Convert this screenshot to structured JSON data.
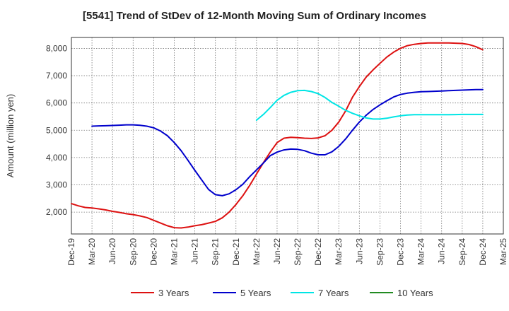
{
  "chart_data": {
    "type": "line",
    "title": "[5541]  Trend of StDev of 12-Month Moving Sum of Ordinary Incomes",
    "ylabel": "Amount (million yen)",
    "xlabel": "",
    "x_ticks": [
      "Dec-19",
      "Mar-20",
      "Jun-20",
      "Sep-20",
      "Dec-20",
      "Mar-21",
      "Jun-21",
      "Sep-21",
      "Dec-21",
      "Mar-22",
      "Jun-22",
      "Sep-22",
      "Dec-22",
      "Mar-23",
      "Jun-23",
      "Sep-23",
      "Dec-23",
      "Mar-24",
      "Jun-24",
      "Sep-24",
      "Dec-24",
      "Mar-25"
    ],
    "y_ticks": [
      2000,
      3000,
      4000,
      5000,
      6000,
      7000,
      8000
    ],
    "y_tick_labels": [
      "2,000",
      "3,000",
      "4,000",
      "5,000",
      "6,000",
      "7,000",
      "8,000"
    ],
    "ylim": [
      1200,
      8400
    ],
    "grid": true,
    "legend_position": "bottom",
    "series": [
      {
        "name": "3 Years",
        "color": "#dd1111",
        "points": [
          [
            "Dec-19",
            2310
          ],
          [
            "Jan-20",
            2230
          ],
          [
            "Feb-20",
            2170
          ],
          [
            "Mar-20",
            2150
          ],
          [
            "Apr-20",
            2120
          ],
          [
            "May-20",
            2080
          ],
          [
            "Jun-20",
            2030
          ],
          [
            "Jul-20",
            1990
          ],
          [
            "Aug-20",
            1940
          ],
          [
            "Sep-20",
            1910
          ],
          [
            "Oct-20",
            1860
          ],
          [
            "Nov-20",
            1800
          ],
          [
            "Dec-20",
            1700
          ],
          [
            "Jan-21",
            1600
          ],
          [
            "Feb-21",
            1500
          ],
          [
            "Mar-21",
            1430
          ],
          [
            "Apr-21",
            1420
          ],
          [
            "May-21",
            1450
          ],
          [
            "Jun-21",
            1500
          ],
          [
            "Jul-21",
            1540
          ],
          [
            "Aug-21",
            1600
          ],
          [
            "Sep-21",
            1660
          ],
          [
            "Oct-21",
            1790
          ],
          [
            "Nov-21",
            2000
          ],
          [
            "Dec-21",
            2280
          ],
          [
            "Jan-22",
            2600
          ],
          [
            "Feb-22",
            2980
          ],
          [
            "Mar-22",
            3400
          ],
          [
            "Apr-22",
            3810
          ],
          [
            "May-22",
            4200
          ],
          [
            "Jun-22",
            4550
          ],
          [
            "Jul-22",
            4710
          ],
          [
            "Aug-22",
            4740
          ],
          [
            "Sep-22",
            4730
          ],
          [
            "Oct-22",
            4710
          ],
          [
            "Nov-22",
            4700
          ],
          [
            "Dec-22",
            4720
          ],
          [
            "Jan-23",
            4800
          ],
          [
            "Feb-23",
            5000
          ],
          [
            "Mar-23",
            5300
          ],
          [
            "Apr-23",
            5710
          ],
          [
            "May-23",
            6210
          ],
          [
            "Jun-23",
            6600
          ],
          [
            "Jul-23",
            6950
          ],
          [
            "Aug-23",
            7210
          ],
          [
            "Sep-23",
            7450
          ],
          [
            "Oct-23",
            7680
          ],
          [
            "Nov-23",
            7860
          ],
          [
            "Dec-23",
            8000
          ],
          [
            "Jan-24",
            8100
          ],
          [
            "Feb-24",
            8150
          ],
          [
            "Mar-24",
            8180
          ],
          [
            "Apr-24",
            8200
          ],
          [
            "May-24",
            8200
          ],
          [
            "Jun-24",
            8200
          ],
          [
            "Jul-24",
            8200
          ],
          [
            "Aug-24",
            8190
          ],
          [
            "Sep-24",
            8180
          ],
          [
            "Oct-24",
            8140
          ],
          [
            "Nov-24",
            8060
          ],
          [
            "Dec-24",
            7950
          ]
        ]
      },
      {
        "name": "5 Years",
        "color": "#0000cc",
        "points": [
          [
            "Mar-20",
            5150
          ],
          [
            "Apr-20",
            5160
          ],
          [
            "May-20",
            5165
          ],
          [
            "Jun-20",
            5175
          ],
          [
            "Jul-20",
            5185
          ],
          [
            "Aug-20",
            5200
          ],
          [
            "Sep-20",
            5200
          ],
          [
            "Oct-20",
            5180
          ],
          [
            "Nov-20",
            5150
          ],
          [
            "Dec-20",
            5090
          ],
          [
            "Jan-21",
            4970
          ],
          [
            "Feb-21",
            4800
          ],
          [
            "Mar-21",
            4550
          ],
          [
            "Apr-21",
            4250
          ],
          [
            "May-21",
            3900
          ],
          [
            "Jun-21",
            3530
          ],
          [
            "Jul-21",
            3180
          ],
          [
            "Aug-21",
            2830
          ],
          [
            "Sep-21",
            2640
          ],
          [
            "Oct-21",
            2600
          ],
          [
            "Nov-21",
            2670
          ],
          [
            "Dec-21",
            2820
          ],
          [
            "Jan-22",
            3020
          ],
          [
            "Feb-22",
            3300
          ],
          [
            "Mar-22",
            3550
          ],
          [
            "Apr-22",
            3800
          ],
          [
            "May-22",
            4070
          ],
          [
            "Jun-22",
            4200
          ],
          [
            "Jul-22",
            4280
          ],
          [
            "Aug-22",
            4310
          ],
          [
            "Sep-22",
            4300
          ],
          [
            "Oct-22",
            4250
          ],
          [
            "Nov-22",
            4160
          ],
          [
            "Dec-22",
            4100
          ],
          [
            "Jan-23",
            4100
          ],
          [
            "Feb-23",
            4210
          ],
          [
            "Mar-23",
            4410
          ],
          [
            "Apr-23",
            4680
          ],
          [
            "May-23",
            5000
          ],
          [
            "Jun-23",
            5300
          ],
          [
            "Jul-23",
            5550
          ],
          [
            "Aug-23",
            5760
          ],
          [
            "Sep-23",
            5930
          ],
          [
            "Oct-23",
            6080
          ],
          [
            "Nov-23",
            6220
          ],
          [
            "Dec-23",
            6310
          ],
          [
            "Jan-24",
            6360
          ],
          [
            "Feb-24",
            6390
          ],
          [
            "Mar-24",
            6410
          ],
          [
            "Apr-24",
            6420
          ],
          [
            "May-24",
            6430
          ],
          [
            "Jun-24",
            6440
          ],
          [
            "Jul-24",
            6450
          ],
          [
            "Aug-24",
            6460
          ],
          [
            "Sep-24",
            6470
          ],
          [
            "Oct-24",
            6480
          ],
          [
            "Nov-24",
            6490
          ],
          [
            "Dec-24",
            6490
          ]
        ]
      },
      {
        "name": "7 Years",
        "color": "#00e5e5",
        "points": [
          [
            "Mar-22",
            5370
          ],
          [
            "Apr-22",
            5580
          ],
          [
            "May-22",
            5830
          ],
          [
            "Jun-22",
            6100
          ],
          [
            "Jul-22",
            6280
          ],
          [
            "Aug-22",
            6390
          ],
          [
            "Sep-22",
            6450
          ],
          [
            "Oct-22",
            6460
          ],
          [
            "Nov-22",
            6420
          ],
          [
            "Dec-22",
            6340
          ],
          [
            "Jan-23",
            6200
          ],
          [
            "Feb-23",
            6020
          ],
          [
            "Mar-23",
            5880
          ],
          [
            "Apr-23",
            5730
          ],
          [
            "May-23",
            5620
          ],
          [
            "Jun-23",
            5530
          ],
          [
            "Jul-23",
            5450
          ],
          [
            "Aug-23",
            5410
          ],
          [
            "Sep-23",
            5410
          ],
          [
            "Oct-23",
            5440
          ],
          [
            "Nov-23",
            5490
          ],
          [
            "Dec-23",
            5530
          ],
          [
            "Jan-24",
            5560
          ],
          [
            "Feb-24",
            5570
          ],
          [
            "Mar-24",
            5570
          ],
          [
            "Apr-24",
            5570
          ],
          [
            "May-24",
            5570
          ],
          [
            "Jun-24",
            5570
          ],
          [
            "Jul-24",
            5570
          ],
          [
            "Aug-24",
            5575
          ],
          [
            "Sep-24",
            5580
          ],
          [
            "Oct-24",
            5580
          ],
          [
            "Nov-24",
            5580
          ],
          [
            "Dec-24",
            5580
          ]
        ]
      },
      {
        "name": "10 Years",
        "color": "#228b22",
        "points": []
      }
    ]
  }
}
